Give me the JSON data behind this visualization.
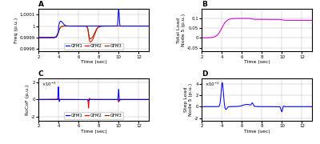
{
  "xlim": [
    2,
    13
  ],
  "A_ylim": [
    0.99978,
    1.00015
  ],
  "A_yticks": [
    0.9998,
    0.9999,
    1.0,
    1.0001
  ],
  "A_ytick_labels": [
    "0.9998",
    "0.9999",
    "1",
    "1.0001"
  ],
  "A_ylabel": "Freq (p.u.)",
  "A_title": "A",
  "B_ylim": [
    -0.07,
    0.15
  ],
  "B_yticks": [
    -0.05,
    0.0,
    0.05,
    0.1
  ],
  "B_ytick_labels": [
    "-0.05",
    "0",
    "0.05",
    "0.1"
  ],
  "B_ylabel": "Total Load\nNode 5 (p.u.)",
  "B_title": "B",
  "C_ylim": [
    -0.0025,
    0.0025
  ],
  "C_yticks": [
    -0.002,
    0,
    0.002
  ],
  "C_ytick_labels": [
    "-2",
    "0",
    "2"
  ],
  "C_ylabel": "RoCoF (p.u.)",
  "C_title": "C",
  "D_ylim": [
    -0.0025,
    0.005
  ],
  "D_yticks": [
    -0.002,
    0,
    0.002,
    0.004
  ],
  "D_ytick_labels": [
    "-2",
    "0",
    "2",
    "4"
  ],
  "D_ylabel": "Step Load\nNode 5 (p.u.)",
  "D_title": "D",
  "xlabel": "Time (sec)",
  "color_gfm1": "#0000FF",
  "color_gfm2": "#FF0000",
  "color_gfm3": "#8B3000",
  "color_magenta": "#CC00CC",
  "color_blue": "#0000FF",
  "xticks": [
    2,
    4,
    6,
    8,
    10,
    12
  ],
  "background": "#FFFFFF"
}
